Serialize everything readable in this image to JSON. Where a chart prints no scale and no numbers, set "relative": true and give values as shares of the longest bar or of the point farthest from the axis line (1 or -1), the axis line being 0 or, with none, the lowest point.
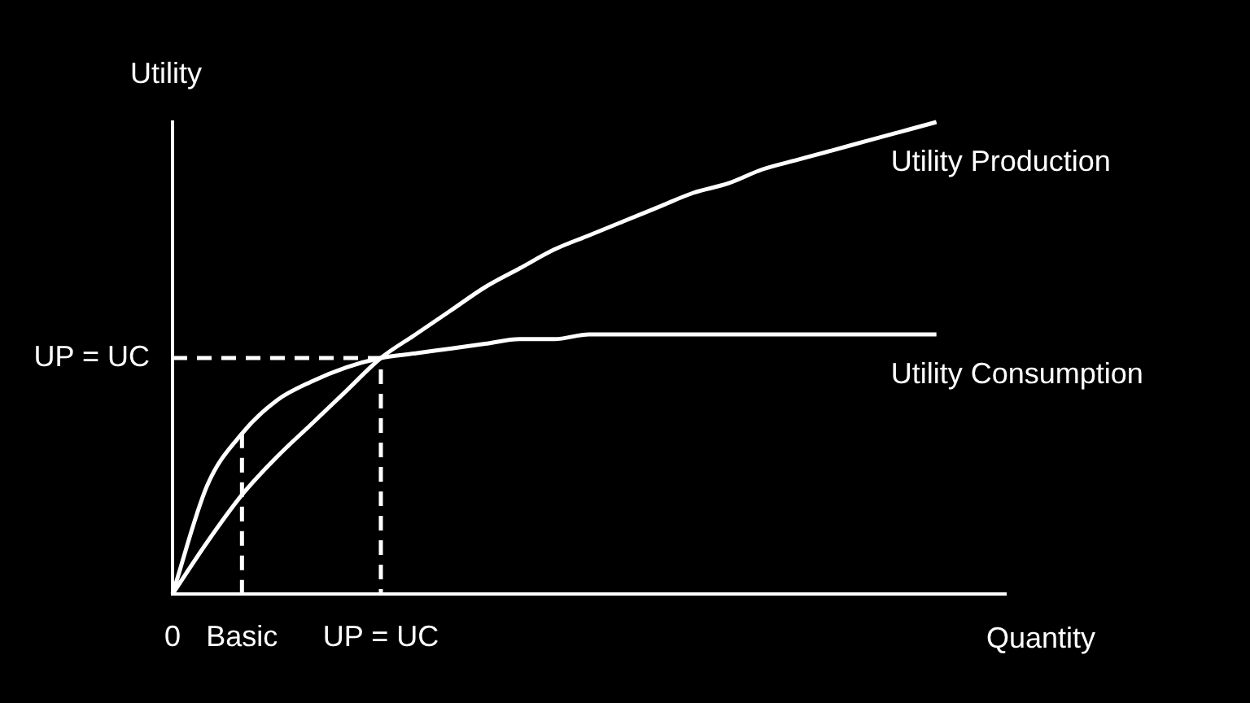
{
  "chart_data": {
    "type": "line",
    "relative": true,
    "xlabel": "Quantity",
    "ylabel": "Utility",
    "categories": [
      "0",
      null,
      "Basic",
      null,
      null,
      null,
      "UP = UC",
      null,
      null,
      null,
      null,
      null,
      null,
      null,
      null,
      null,
      null,
      null,
      null,
      null,
      null,
      null,
      null,
      null,
      null
    ],
    "series": [
      {
        "name": "Utility Production",
        "color": "#ffffff",
        "values": [
          0,
          0.11,
          0.21,
          0.29,
          0.36,
          0.43,
          0.5,
          0.55,
          0.6,
          0.65,
          0.69,
          0.73,
          0.76,
          0.79,
          0.82,
          0.85,
          0.87,
          0.9,
          0.92,
          0.94,
          0.96,
          0.98,
          1,
          null,
          null
        ]
      },
      {
        "name": "Utility Consumption",
        "color": "#ffffff",
        "values": [
          0,
          0.23,
          0.34,
          0.41,
          0.45,
          0.48,
          0.5,
          0.51,
          0.52,
          0.53,
          0.54,
          0.54,
          0.55,
          0.55,
          0.55,
          0.55,
          0.55,
          0.55,
          0.55,
          0.55,
          0.55,
          0.55,
          0.55,
          null,
          null
        ]
      },
      {
        "type": "line",
        "color": "#ffffff",
        "line_style": "dashed",
        "x": [
          "0",
          "UP = UC",
          "UP = UC"
        ],
        "values": [
          0.5,
          0.5,
          0
        ]
      },
      {
        "type": "line",
        "color": "#ffffff",
        "line_style": "dashed",
        "x": [
          "Basic",
          "Basic"
        ],
        "values": [
          0.34,
          0
        ]
      }
    ],
    "annotations": [
      {
        "text": "UP = UC",
        "x": "0",
        "y": 0.5
      }
    ],
    "legend": false,
    "grid": false,
    "marker": "none"
  }
}
